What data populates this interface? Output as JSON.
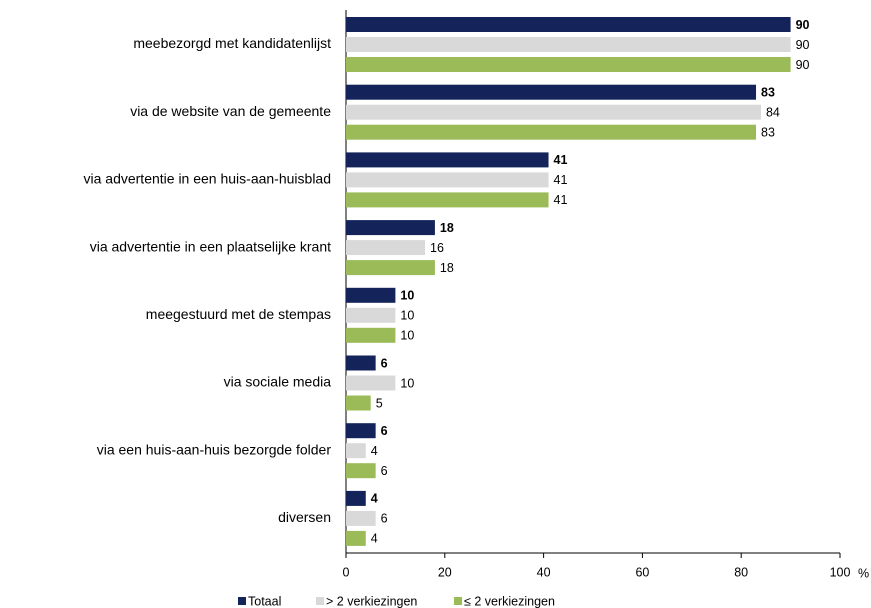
{
  "chart_data": {
    "type": "bar",
    "orientation": "horizontal",
    "categories": [
      "meebezorgd met kandidatenlijst",
      "via de website van de gemeente",
      "via advertentie in een huis-aan-huisblad",
      "via advertentie in een plaatselijke krant",
      "meegestuurd met de stempas",
      "via sociale media",
      "via een huis-aan-huis bezorgde folder",
      "diversen"
    ],
    "series": [
      {
        "name": "Totaal",
        "color": "#14235a",
        "values": [
          90,
          83,
          41,
          18,
          10,
          6,
          6,
          4
        ]
      },
      {
        "name": "> 2 verkiezingen",
        "color": "#d9d9d9",
        "values": [
          90,
          84,
          41,
          16,
          10,
          10,
          4,
          6
        ]
      },
      {
        "name": "≤ 2 verkiezingen",
        "color": "#9bbb59",
        "values": [
          90,
          83,
          41,
          18,
          10,
          5,
          6,
          4
        ]
      }
    ],
    "xlim": [
      0,
      100
    ],
    "xticks": [
      0,
      20,
      40,
      60,
      80,
      100
    ],
    "xlabel": "%",
    "legend": "bottom"
  }
}
